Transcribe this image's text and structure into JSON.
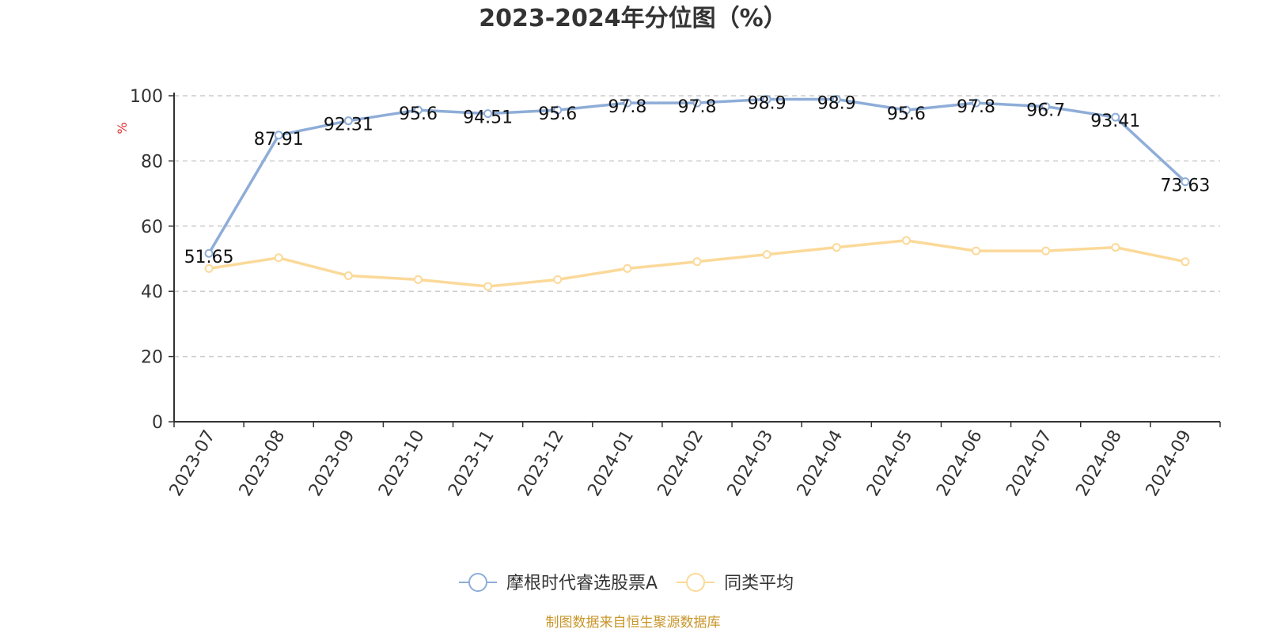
{
  "chart_data": {
    "type": "line",
    "title": "2023-2024年分位图（%）",
    "ylabel": "%",
    "ylim": [
      0,
      100
    ],
    "yticks": [
      0,
      20,
      40,
      60,
      80,
      100
    ],
    "grid": true,
    "legend_position": "bottom-center",
    "categories": [
      "2023-07",
      "2023-08",
      "2023-09",
      "2023-10",
      "2023-11",
      "2023-12",
      "2024-01",
      "2024-02",
      "2024-03",
      "2024-04",
      "2024-05",
      "2024-06",
      "2024-07",
      "2024-08",
      "2024-09"
    ],
    "series": [
      {
        "name": "摩根时代睿选股票A",
        "color": "#8eadd8",
        "values": [
          51.65,
          87.91,
          92.31,
          95.6,
          94.51,
          95.6,
          97.8,
          97.8,
          98.9,
          98.9,
          95.6,
          97.8,
          96.7,
          93.41,
          73.63
        ],
        "labels": [
          "51.65",
          "87.91",
          "92.31",
          "95.6",
          "94.51",
          "95.6",
          "97.8",
          "97.8",
          "98.9",
          "98.9",
          "95.6",
          "97.8",
          "96.7",
          "93.41",
          "73.63"
        ]
      },
      {
        "name": "同类平均",
        "color": "#fbd999",
        "values": [
          47,
          50.3,
          44.8,
          43.6,
          41.5,
          43.6,
          47,
          49.1,
          51.3,
          53.5,
          55.6,
          52.4,
          52.4,
          53.5,
          49.1
        ]
      }
    ],
    "source": "制图数据来自恒生聚源数据库"
  }
}
